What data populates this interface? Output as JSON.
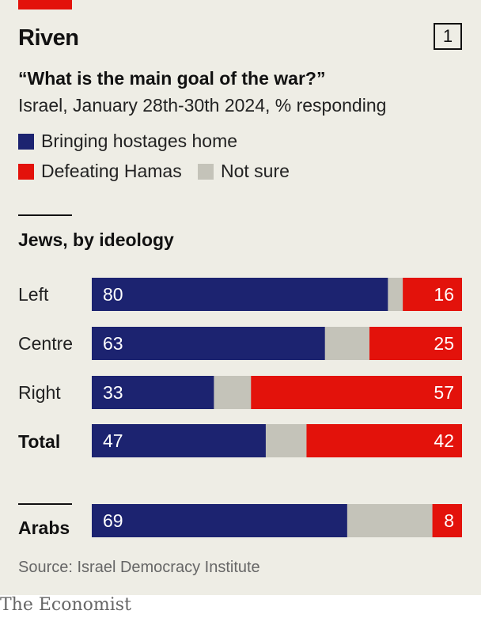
{
  "header": {
    "title": "Riven",
    "chart_number": "1",
    "subtitle": "“What is the main goal of the war?”",
    "caption": "Israel, January 28th-30th 2024, % responding"
  },
  "legend": [
    {
      "label": "Bringing hostages home",
      "color": "#1c2370"
    },
    {
      "label": "Defeating Hamas",
      "color": "#e3120b"
    },
    {
      "label": "Not sure",
      "color": "#c4c3b9"
    }
  ],
  "section_heading": "Jews, by ideology",
  "source": "Source: Israel Democracy Institute",
  "brand": "The Economist",
  "chart_data": {
    "type": "bar",
    "orientation": "horizontal",
    "stacked": true,
    "title": "Riven",
    "categories": [
      "Left",
      "Centre",
      "Right",
      "Total",
      "Arabs"
    ],
    "groups": [
      "Jews, by ideology",
      "Jews, by ideology",
      "Jews, by ideology",
      "Jews, by ideology",
      ""
    ],
    "series": [
      {
        "name": "Bringing hostages home",
        "color": "#1c2370",
        "values": [
          80,
          63,
          33,
          47,
          69
        ],
        "labels": [
          "80",
          "63",
          "33",
          "47",
          "69"
        ]
      },
      {
        "name": "Not sure",
        "color": "#c4c3b9",
        "values": [
          4,
          12,
          10,
          11,
          23
        ],
        "labels": [
          "",
          "",
          "",
          "",
          ""
        ]
      },
      {
        "name": "Defeating Hamas",
        "color": "#e3120b",
        "values": [
          16,
          25,
          57,
          42,
          8
        ],
        "labels": [
          "16",
          "25",
          "57",
          "42",
          "8"
        ]
      }
    ],
    "xlim": [
      0,
      100
    ],
    "grid": false,
    "legend_position": "top-left"
  }
}
